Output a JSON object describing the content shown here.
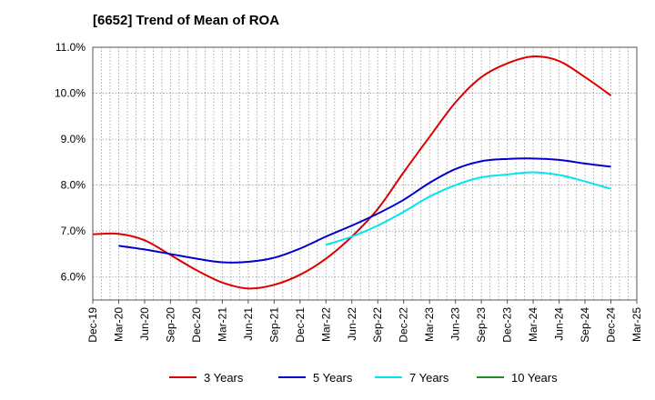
{
  "chart_data": {
    "type": "line",
    "title": "[6652]  Trend of Mean of ROA",
    "xlabel": "",
    "ylabel": "",
    "ylim": [
      5.5,
      11.0
    ],
    "y_ticks": [
      "6.0%",
      "7.0%",
      "8.0%",
      "9.0%",
      "10.0%",
      "11.0%"
    ],
    "y_tick_values": [
      6.0,
      7.0,
      8.0,
      9.0,
      10.0,
      11.0
    ],
    "x_ticks": [
      "Dec-19",
      "Mar-20",
      "Jun-20",
      "Sep-20",
      "Dec-20",
      "Mar-21",
      "Jun-21",
      "Sep-21",
      "Dec-21",
      "Mar-22",
      "Jun-22",
      "Sep-22",
      "Dec-22",
      "Mar-23",
      "Jun-23",
      "Sep-23",
      "Dec-23",
      "Mar-24",
      "Jun-24",
      "Sep-24",
      "Dec-24",
      "Mar-25"
    ],
    "grid": true,
    "legend_position": "bottom",
    "series": [
      {
        "name": "3 Years",
        "color": "#dd0000",
        "values": [
          6.93,
          6.94,
          6.8,
          6.48,
          6.15,
          5.88,
          5.75,
          5.83,
          6.05,
          6.4,
          6.88,
          7.48,
          8.28,
          9.05,
          9.8,
          10.35,
          10.65,
          10.8,
          10.7,
          10.35,
          9.95,
          null
        ]
      },
      {
        "name": "5 Years",
        "color": "#0000cc",
        "values": [
          null,
          6.68,
          6.6,
          6.5,
          6.4,
          6.32,
          6.33,
          6.42,
          6.62,
          6.88,
          7.12,
          7.38,
          7.68,
          8.05,
          8.35,
          8.52,
          8.57,
          8.58,
          8.55,
          8.47,
          8.4,
          null
        ]
      },
      {
        "name": "7 Years",
        "color": "#00e5ee",
        "values": [
          null,
          null,
          null,
          null,
          null,
          null,
          null,
          null,
          null,
          6.7,
          6.88,
          7.12,
          7.42,
          7.75,
          8.0,
          8.17,
          8.23,
          8.28,
          8.22,
          8.08,
          7.92,
          null
        ]
      },
      {
        "name": "10 Years",
        "color": "#228b22",
        "values": [
          null,
          null,
          null,
          null,
          null,
          null,
          null,
          null,
          null,
          null,
          null,
          null,
          null,
          null,
          null,
          null,
          null,
          null,
          null,
          null,
          null,
          null
        ]
      }
    ]
  }
}
